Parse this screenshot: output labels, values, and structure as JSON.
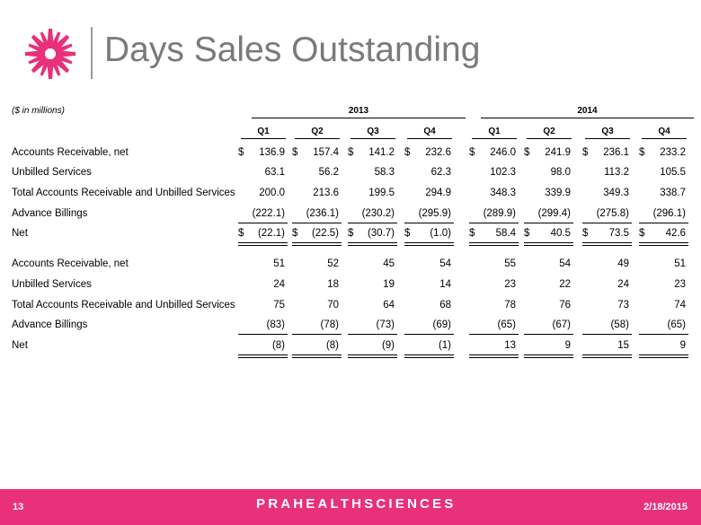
{
  "header": {
    "title": "Days Sales Outstanding"
  },
  "table": {
    "units": "($ in millions)",
    "years": [
      "2013",
      "2014"
    ],
    "quarters": [
      "Q1",
      "Q2",
      "Q3",
      "Q4",
      "Q1",
      "Q2",
      "Q3",
      "Q4"
    ],
    "rows": [
      {
        "label": "Accounts Receivable, net",
        "values": [
          "136.9",
          "157.4",
          "141.2",
          "232.6",
          "246.0",
          "241.9",
          "236.1",
          "233.2"
        ],
        "dollar": true
      },
      {
        "label": "Unbilled Services",
        "values": [
          "63.1",
          "56.2",
          "58.3",
          "62.3",
          "102.3",
          "98.0",
          "113.2",
          "105.5"
        ]
      },
      {
        "label": "Total Accounts Receivable and Unbilled Services",
        "values": [
          "200.0",
          "213.6",
          "199.5",
          "294.9",
          "348.3",
          "339.9",
          "349.3",
          "338.7"
        ]
      },
      {
        "label": "Advance Billings",
        "values": [
          "(222.1)",
          "(236.1)",
          "(230.2)",
          "(295.9)",
          "(289.9)",
          "(299.4)",
          "(275.8)",
          "(296.1)"
        ]
      },
      {
        "label": "Net",
        "values": [
          "(22.1)",
          "(22.5)",
          "(30.7)",
          "(1.0)",
          "58.4",
          "40.5",
          "73.5",
          "42.6"
        ],
        "dollar": true
      },
      {
        "label": "Accounts Receivable, net",
        "values": [
          "51",
          "52",
          "45",
          "54",
          "55",
          "54",
          "49",
          "51"
        ]
      },
      {
        "label": "Unbilled Services",
        "values": [
          "24",
          "18",
          "19",
          "14",
          "23",
          "22",
          "24",
          "23"
        ]
      },
      {
        "label": "Total Accounts Receivable and Unbilled Services",
        "values": [
          "75",
          "70",
          "64",
          "68",
          "78",
          "76",
          "73",
          "74"
        ]
      },
      {
        "label": "Advance Billings",
        "values": [
          "(83)",
          "(78)",
          "(73)",
          "(69)",
          "(65)",
          "(67)",
          "(58)",
          "(65)"
        ]
      },
      {
        "label": "Net",
        "values": [
          "(8)",
          "(8)",
          "(9)",
          "(1)",
          "13",
          "9",
          "15",
          "9"
        ]
      }
    ]
  },
  "footer": {
    "page": "13",
    "brand": "PRAHEALTHSCIENCES",
    "date": "2/18/2015"
  },
  "colors": {
    "accent": "#e8317a",
    "title": "#7a7a7a"
  }
}
